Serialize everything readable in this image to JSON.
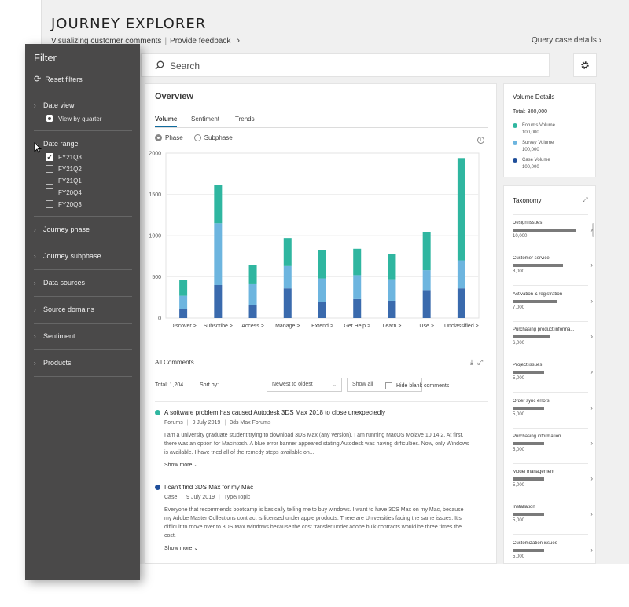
{
  "header": {
    "title": "JOURNEY EXPLORER",
    "subtitle": "Visualizing customer comments",
    "feedback_link": "Provide feedback",
    "query_link": "Query case details"
  },
  "search": {
    "placeholder": "Search"
  },
  "overview": {
    "title": "Overview",
    "tabs": [
      {
        "label": "Volume",
        "active": true
      },
      {
        "label": "Sentiment",
        "active": false
      },
      {
        "label": "Trends",
        "active": false
      }
    ],
    "radios": [
      {
        "label": "Phase",
        "selected": true
      },
      {
        "label": "Subphase",
        "selected": false
      }
    ]
  },
  "chart_data": {
    "type": "bar",
    "stacked": true,
    "categories": [
      "Discover",
      "Subscribe",
      "Access",
      "Manage",
      "Extend",
      "Get Help",
      "Learn",
      "Use",
      "Unclassified"
    ],
    "series": [
      {
        "color": "#3a6aad",
        "values": [
          110,
          400,
          160,
          360,
          200,
          230,
          210,
          340,
          360
        ]
      },
      {
        "color": "#6db5df",
        "values": [
          160,
          750,
          250,
          270,
          280,
          290,
          260,
          240,
          340
        ]
      },
      {
        "color": "#2fb6a0",
        "values": [
          190,
          460,
          230,
          340,
          340,
          320,
          310,
          460,
          1240
        ]
      }
    ],
    "yticks": [
      0,
      500,
      1000,
      1500,
      2000
    ],
    "ylim": [
      0,
      2000
    ],
    "category_suffix": ">"
  },
  "comments": {
    "title": "All Comments",
    "total_label": "Total: 1,204",
    "sort_label": "Sort by:",
    "sort_value": "Newest to oldest",
    "filter_value": "Show all",
    "hide_blank_label": "Hide blank comments",
    "items": [
      {
        "color": "#2fb6a0",
        "title": "A software problem has caused Autodesk 3DS Max 2018 to close unexpectedly",
        "source": "Forums",
        "date": "9 July 2019",
        "topic": "3ds Max Forums",
        "body": "I am a university graduate student trying to download 3DS Max (any version). I am running MacOS Mojave 10.14.2. At first, there was an option for Macintosh. A blue error banner appeared stating Autodesk was having difficulties. Now, only Windows is available. I have tried all of the remedy steps available on...",
        "more": "Show more"
      },
      {
        "color": "#1f4e9a",
        "title": "I can't find 3DS Max for my Mac",
        "source": "Case",
        "date": "9 July 2019",
        "topic": "Type/Topic",
        "body": "Everyone that recommends bootcamp is basically telling me to buy windows. I want to have 3DS Max on my Mac, because my Adobe Master Collections contract is licensed under apple products. There are Universities facing the same issues. It's difficult to move over to 3DS Max Windows because the cost transfer under adobe bulk contracts would be three times the cost.",
        "more": "Show more"
      }
    ]
  },
  "volume": {
    "title": "Volume Details",
    "total": "Total:  300,000",
    "items": [
      {
        "label": "Forums Volume",
        "value": "100,000",
        "color": "#2fb6a0"
      },
      {
        "label": "Survey Volume",
        "value": "100,000",
        "color": "#6db5df"
      },
      {
        "label": "Case Volume",
        "value": "100,000",
        "color": "#1f4e9a"
      }
    ]
  },
  "taxonomy": {
    "title": "Taxonomy",
    "items": [
      {
        "label": "Design issues",
        "value": "10,000",
        "fill": 1.0
      },
      {
        "label": "Customer service",
        "value": "8,000",
        "fill": 0.8
      },
      {
        "label": "Activation & registration",
        "value": "7,000",
        "fill": 0.7
      },
      {
        "label": "Purchasing product informa...",
        "value": "6,000",
        "fill": 0.6
      },
      {
        "label": "Project issues",
        "value": "5,000",
        "fill": 0.5
      },
      {
        "label": "Order sync errors",
        "value": "5,000",
        "fill": 0.5
      },
      {
        "label": "Purchasing information",
        "value": "5,000",
        "fill": 0.5
      },
      {
        "label": "Model management",
        "value": "5,000",
        "fill": 0.5
      },
      {
        "label": "Installation",
        "value": "5,000",
        "fill": 0.5
      },
      {
        "label": "Customization issues",
        "value": "5,000",
        "fill": 0.5
      }
    ]
  },
  "filter": {
    "title": "Filter",
    "reset": "Reset filters",
    "date_view": {
      "label": "Date view",
      "option": "View by quarter"
    },
    "date_range": {
      "label": "Date range",
      "options": [
        {
          "label": "FY21Q3",
          "checked": true
        },
        {
          "label": "FY21Q2",
          "checked": false
        },
        {
          "label": "FY21Q1",
          "checked": false
        },
        {
          "label": "FY20Q4",
          "checked": false
        },
        {
          "label": "FY20Q3",
          "checked": false
        }
      ]
    },
    "sections": [
      "Journey phase",
      "Journey subphase",
      "Data sources",
      "Source domains",
      "Sentiment",
      "Products"
    ]
  }
}
